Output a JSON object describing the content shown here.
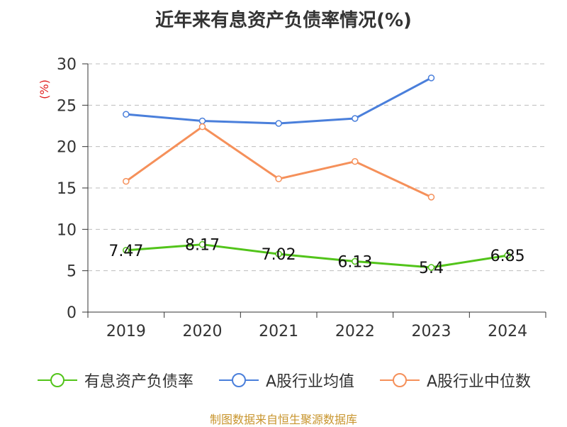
{
  "chart_data": {
    "type": "line",
    "title": "近年来有息资产负债率情况(%)",
    "ylabel": "(%)",
    "categories": [
      "2019",
      "2020",
      "2021",
      "2022",
      "2023",
      "2024"
    ],
    "ylim": [
      0,
      30
    ],
    "yticks": [
      0,
      5,
      10,
      15,
      20,
      25,
      30
    ],
    "grid": true,
    "legend_position": "bottom",
    "series": [
      {
        "name": "有息资产负债率",
        "values": [
          7.47,
          8.17,
          7.02,
          6.13,
          5.4,
          6.85
        ],
        "color": "#52c41a",
        "show_labels": true,
        "labels": [
          "7.47",
          "8.17",
          "7.02",
          "6.13",
          "5.4",
          "6.85"
        ]
      },
      {
        "name": "A股行业均值",
        "values": [
          23.9,
          23.1,
          22.8,
          23.4,
          28.3,
          null
        ],
        "color": "#4a7fdb",
        "show_labels": false
      },
      {
        "name": "A股行业中位数",
        "values": [
          15.8,
          22.4,
          16.1,
          18.2,
          13.9,
          null
        ],
        "color": "#f5905a",
        "show_labels": false
      }
    ]
  },
  "footer": "制图数据来自恒生聚源数据库"
}
